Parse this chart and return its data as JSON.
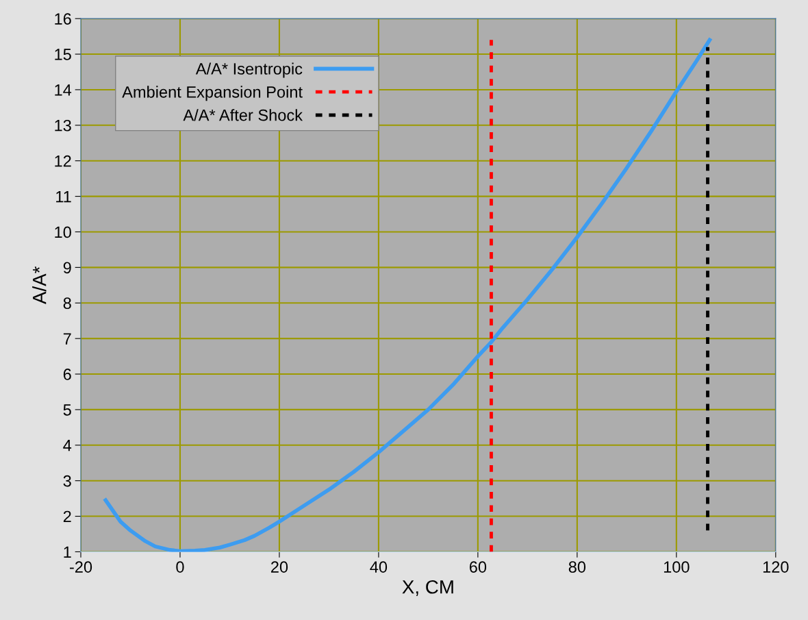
{
  "chart_data": {
    "type": "line",
    "xlabel": "X, CM",
    "ylabel": "A/A*",
    "xlim": [
      -20,
      120
    ],
    "xticks": [
      -20,
      0,
      20,
      40,
      60,
      80,
      100,
      120
    ],
    "ylim": [
      1,
      16
    ],
    "yticks": [
      1,
      2,
      3,
      4,
      5,
      6,
      7,
      8,
      9,
      10,
      11,
      12,
      13,
      14,
      15,
      16
    ],
    "grid": true,
    "legend": "top left",
    "marker": "none",
    "series": [
      {
        "name": "A/A* Isentropic",
        "color": "#3d9cf0",
        "line_style": "solid",
        "x": [
          -15,
          -12,
          -10,
          -7,
          -5,
          -2,
          0,
          3,
          5,
          8,
          10,
          13,
          15,
          18,
          20,
          25,
          30,
          35,
          40,
          45,
          50,
          55,
          60,
          62.7,
          65,
          70,
          75,
          80,
          85,
          90,
          95,
          100,
          104,
          106.7
        ],
        "values": [
          2.45,
          1.85,
          1.6,
          1.3,
          1.15,
          1.05,
          1.02,
          1.03,
          1.05,
          1.12,
          1.2,
          1.33,
          1.45,
          1.68,
          1.85,
          2.3,
          2.75,
          3.25,
          3.8,
          4.4,
          5.0,
          5.7,
          6.5,
          6.9,
          7.3,
          8.1,
          8.95,
          9.85,
          10.8,
          11.8,
          12.85,
          13.95,
          14.8,
          15.4
        ]
      },
      {
        "name": "Ambient Expansion Point",
        "color": "#ff0000",
        "line_style": "dashed",
        "x": [
          62.7,
          62.7
        ],
        "values": [
          1,
          15.4
        ]
      },
      {
        "name": "A/A* After Shock",
        "color": "#000000",
        "line_style": "dashed",
        "x": [
          106.3,
          106.3
        ],
        "values": [
          1.6,
          15.2
        ]
      }
    ]
  }
}
